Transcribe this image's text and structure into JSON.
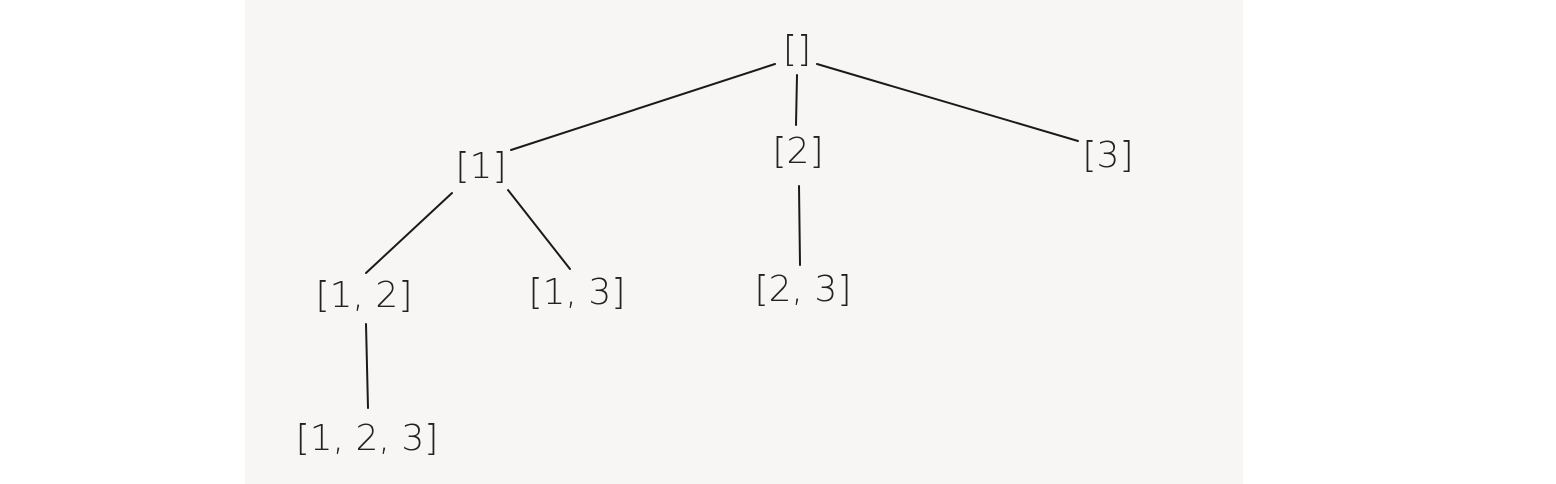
{
  "diagram": {
    "nodes": [
      {
        "id": "root",
        "label": "[]"
      },
      {
        "id": "n1",
        "label": "[1]"
      },
      {
        "id": "n2",
        "label": "[2]"
      },
      {
        "id": "n3",
        "label": "[3]"
      },
      {
        "id": "n12",
        "label": "[1, 2]"
      },
      {
        "id": "n13",
        "label": "[1, 3]"
      },
      {
        "id": "n23",
        "label": "[2, 3]"
      },
      {
        "id": "n123",
        "label": "[1, 2, 3]"
      }
    ],
    "edges": [
      {
        "from": "root",
        "to": "n1"
      },
      {
        "from": "root",
        "to": "n2"
      },
      {
        "from": "root",
        "to": "n3"
      },
      {
        "from": "n1",
        "to": "n12"
      },
      {
        "from": "n1",
        "to": "n13"
      },
      {
        "from": "n2",
        "to": "n23"
      },
      {
        "from": "n12",
        "to": "n123"
      }
    ]
  }
}
